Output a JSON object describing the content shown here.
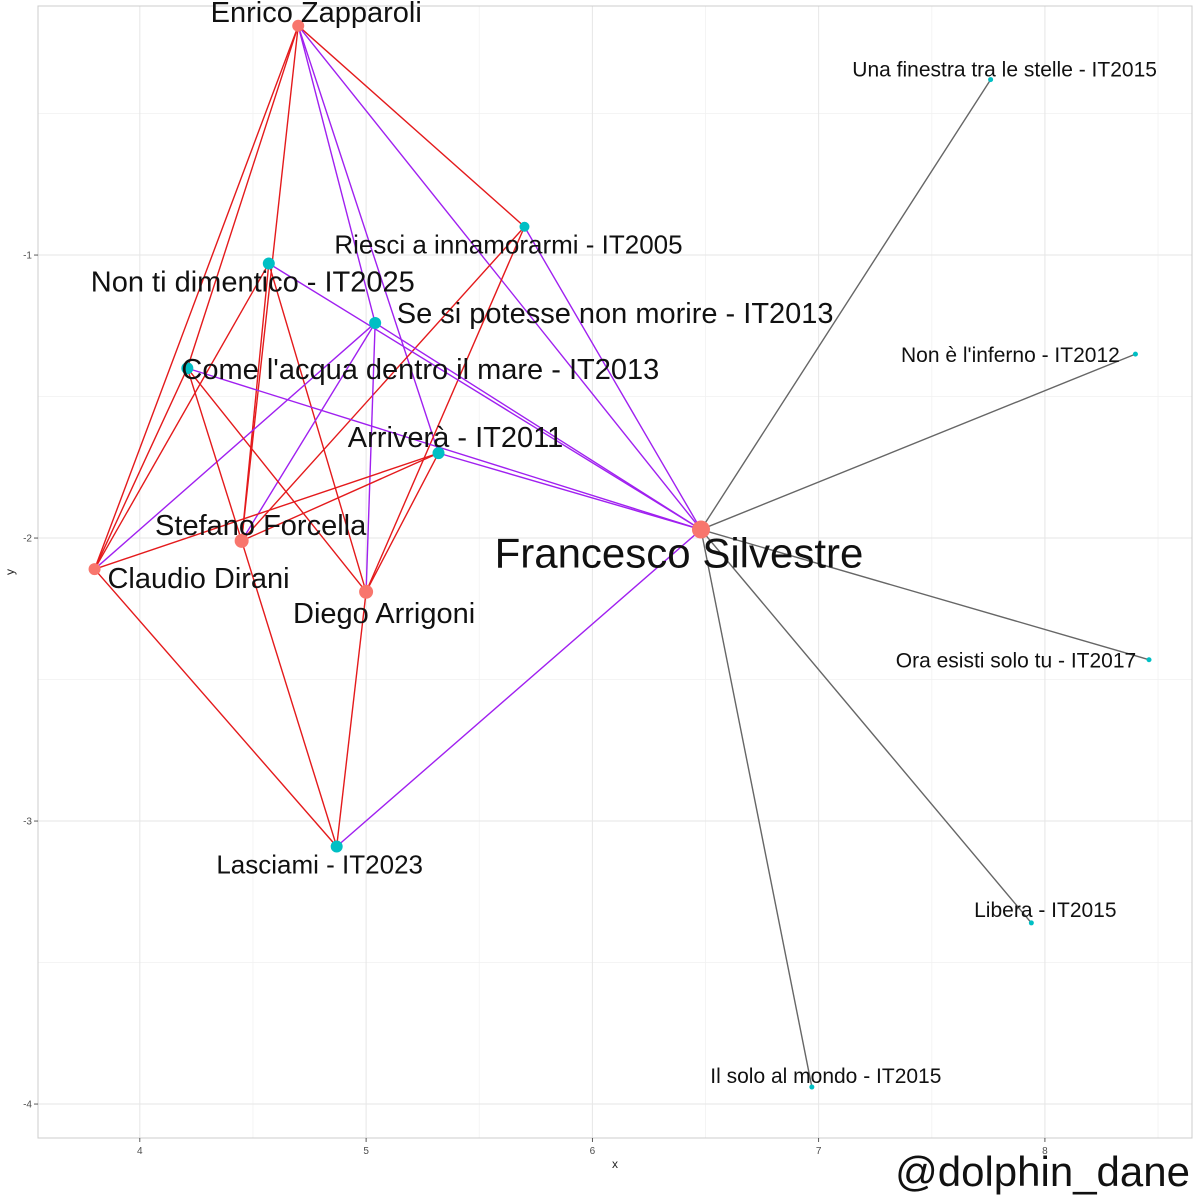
{
  "chart_data": {
    "type": "network",
    "xlabel": "x",
    "ylabel": "y",
    "xlim": [
      3.55,
      8.65
    ],
    "ylim": [
      -4.12,
      -0.12
    ],
    "xticks": [
      4,
      5,
      6,
      7,
      8
    ],
    "yticks": [
      -1,
      -2,
      -3,
      -4
    ],
    "grid": true,
    "node_colors": {
      "person": "#f8766d",
      "song": "#00bfc4"
    },
    "edge_colors": {
      "red": "#e41a1c",
      "purple": "#a020f0",
      "grey": "#666666"
    },
    "nodes": [
      {
        "id": "enrico",
        "label": "Enrico Zapparoli",
        "kind": "person",
        "x": 4.7,
        "y": -0.19,
        "size": 6
      },
      {
        "id": "stefano",
        "label": "Stefano Forcella",
        "kind": "person",
        "x": 4.45,
        "y": -2.01,
        "size": 7
      },
      {
        "id": "claudio",
        "label": "Claudio Dirani",
        "kind": "person",
        "x": 3.8,
        "y": -2.11,
        "size": 6
      },
      {
        "id": "diego",
        "label": "Diego Arrigoni",
        "kind": "person",
        "x": 5.0,
        "y": -2.19,
        "size": 7
      },
      {
        "id": "francesco",
        "label": "Francesco Silvestre",
        "kind": "person",
        "x": 6.48,
        "y": -1.97,
        "size": 9
      },
      {
        "id": "riesci",
        "label": "Riesci a innamorarmi - IT2005",
        "kind": "song",
        "x": 5.7,
        "y": -0.9,
        "size": 5
      },
      {
        "id": "nontidim",
        "label": "Non ti dimentico - IT2025",
        "kind": "song",
        "x": 4.57,
        "y": -1.03,
        "size": 6
      },
      {
        "id": "sesipot",
        "label": "Se si potesse non morire - IT2013",
        "kind": "song",
        "x": 5.04,
        "y": -1.24,
        "size": 6
      },
      {
        "id": "comeacqua",
        "label": "Come l'acqua dentro il mare - IT2013",
        "kind": "song",
        "x": 4.21,
        "y": -1.4,
        "size": 6
      },
      {
        "id": "arrivera",
        "label": "Arriverà - IT2011",
        "kind": "song",
        "x": 5.32,
        "y": -1.7,
        "size": 6
      },
      {
        "id": "lasciami",
        "label": "Lasciami - IT2023",
        "kind": "song",
        "x": 4.87,
        "y": -3.09,
        "size": 6
      },
      {
        "id": "finestra",
        "label": "Una finestra tra le stelle - IT2015",
        "kind": "song",
        "x": 7.76,
        "y": -0.38,
        "size": 2.5
      },
      {
        "id": "noneinf",
        "label": "Non è l'inferno  - IT2012",
        "kind": "song",
        "x": 8.4,
        "y": -1.35,
        "size": 2.5
      },
      {
        "id": "ora",
        "label": "Ora esisti solo tu - IT2017",
        "kind": "song",
        "x": 8.46,
        "y": -2.43,
        "size": 2.5
      },
      {
        "id": "libera",
        "label": "Libera - IT2015",
        "kind": "song",
        "x": 7.94,
        "y": -3.36,
        "size": 2.5
      },
      {
        "id": "ilsolo",
        "label": "Il solo al mondo - IT2015",
        "kind": "song",
        "x": 6.97,
        "y": -3.94,
        "size": 2.5
      }
    ],
    "edges": [
      {
        "from": "enrico",
        "to": "riesci",
        "color": "red"
      },
      {
        "from": "enrico",
        "to": "comeacqua",
        "color": "red"
      },
      {
        "from": "enrico",
        "to": "stefano",
        "color": "red"
      },
      {
        "from": "enrico",
        "to": "claudio",
        "color": "red"
      },
      {
        "from": "enrico",
        "to": "francesco",
        "color": "purple"
      },
      {
        "from": "enrico",
        "to": "arrivera",
        "color": "purple"
      },
      {
        "from": "enrico",
        "to": "sesipot",
        "color": "purple"
      },
      {
        "from": "riesci",
        "to": "francesco",
        "color": "purple"
      },
      {
        "from": "riesci",
        "to": "stefano",
        "color": "red"
      },
      {
        "from": "riesci",
        "to": "diego",
        "color": "red"
      },
      {
        "from": "nontidim",
        "to": "claudio",
        "color": "red"
      },
      {
        "from": "nontidim",
        "to": "stefano",
        "color": "red"
      },
      {
        "from": "nontidim",
        "to": "diego",
        "color": "red"
      },
      {
        "from": "nontidim",
        "to": "francesco",
        "color": "purple"
      },
      {
        "from": "sesipot",
        "to": "stefano",
        "color": "purple"
      },
      {
        "from": "sesipot",
        "to": "claudio",
        "color": "purple"
      },
      {
        "from": "sesipot",
        "to": "diego",
        "color": "purple"
      },
      {
        "from": "sesipot",
        "to": "francesco",
        "color": "purple"
      },
      {
        "from": "comeacqua",
        "to": "claudio",
        "color": "red"
      },
      {
        "from": "comeacqua",
        "to": "stefano",
        "color": "red"
      },
      {
        "from": "comeacqua",
        "to": "diego",
        "color": "red"
      },
      {
        "from": "comeacqua",
        "to": "francesco",
        "color": "purple"
      },
      {
        "from": "arrivera",
        "to": "stefano",
        "color": "red"
      },
      {
        "from": "arrivera",
        "to": "claudio",
        "color": "red"
      },
      {
        "from": "arrivera",
        "to": "diego",
        "color": "red"
      },
      {
        "from": "arrivera",
        "to": "francesco",
        "color": "purple"
      },
      {
        "from": "lasciami",
        "to": "claudio",
        "color": "red"
      },
      {
        "from": "lasciami",
        "to": "stefano",
        "color": "red"
      },
      {
        "from": "lasciami",
        "to": "diego",
        "color": "red"
      },
      {
        "from": "lasciami",
        "to": "francesco",
        "color": "purple"
      },
      {
        "from": "francesco",
        "to": "finestra",
        "color": "grey"
      },
      {
        "from": "francesco",
        "to": "noneinf",
        "color": "grey"
      },
      {
        "from": "francesco",
        "to": "ora",
        "color": "grey"
      },
      {
        "from": "francesco",
        "to": "libera",
        "color": "grey"
      },
      {
        "from": "francesco",
        "to": "ilsolo",
        "color": "grey"
      }
    ]
  },
  "watermark": "@dolphin_dane"
}
